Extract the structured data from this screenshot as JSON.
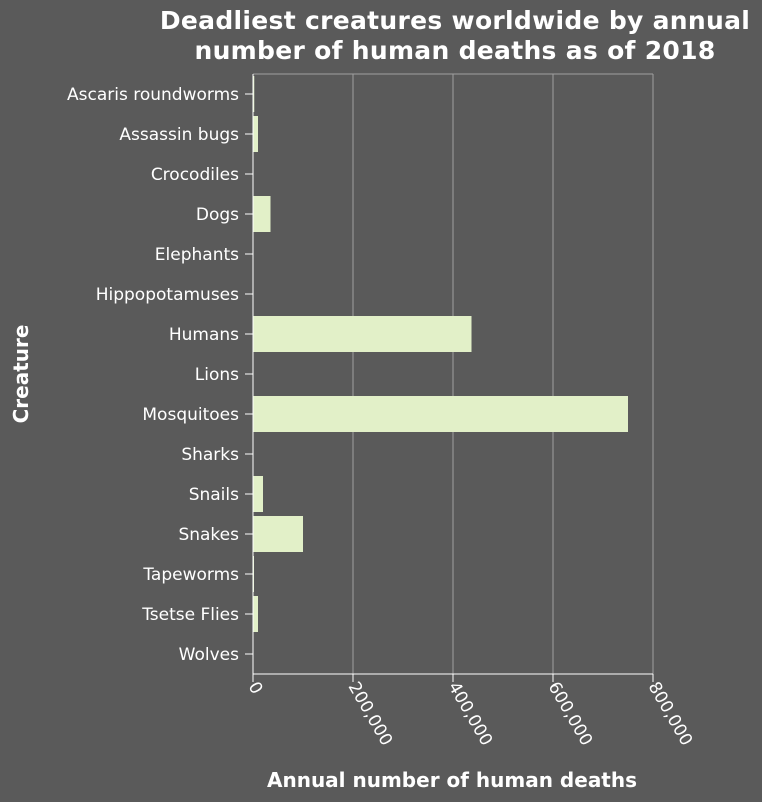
{
  "chart_data": {
    "type": "bar",
    "orientation": "horizontal",
    "title_lines": [
      "Deadliest creatures worldwide by annual",
      "number of human deaths as of 2018"
    ],
    "xlabel": "Annual number of human deaths",
    "ylabel": "Creature",
    "categories": [
      "Ascaris roundworms",
      "Assassin bugs",
      "Crocodiles",
      "Dogs",
      "Elephants",
      "Hippopotamuses",
      "Humans",
      "Lions",
      "Mosquitoes",
      "Sharks",
      "Snails",
      "Snakes",
      "Tapeworms",
      "Tsetse Flies",
      "Wolves"
    ],
    "values": [
      2500,
      10000,
      1000,
      35000,
      500,
      500,
      437000,
      100,
      750000,
      6,
      20000,
      100000,
      2000,
      10000,
      10
    ],
    "xlim": [
      0,
      800000
    ],
    "xticks": [
      0,
      200000,
      400000,
      600000,
      800000
    ],
    "xtick_labels": [
      "0",
      "200,000",
      "400,000",
      "600,000",
      "800,000"
    ],
    "grid": "vertical",
    "legend": "none",
    "colors": {
      "background": "#5a5a5a",
      "bar": "#e2f0c8",
      "grid": "#a0a0a0",
      "axis": "#ffffff",
      "text": "#ffffff"
    }
  }
}
